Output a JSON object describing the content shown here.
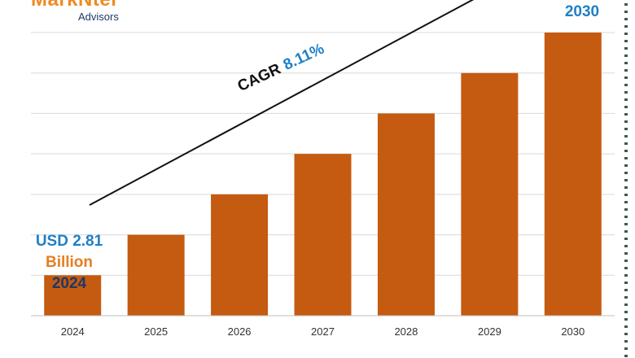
{
  "logo": {
    "brand": "MarkNtel",
    "sub": "Advisors"
  },
  "start_callout": {
    "value": "USD 2.81",
    "unit": "Billion",
    "year": "2024"
  },
  "end_callout": {
    "year": "2030"
  },
  "cagr": {
    "label": "CAGR",
    "value": "8.11%"
  },
  "colors": {
    "bar": "#c55a11",
    "grid": "#d9d9d9",
    "value": "#1f7fc7",
    "unit": "#e67e22",
    "year": "#1f3864"
  },
  "chart_data": {
    "type": "bar",
    "categories": [
      "2024",
      "2025",
      "2026",
      "2027",
      "2028",
      "2029",
      "2030"
    ],
    "values": [
      1,
      2,
      3,
      4,
      5,
      6,
      7
    ],
    "ylim": [
      0,
      7
    ],
    "grid": true,
    "legend": "none"
  }
}
